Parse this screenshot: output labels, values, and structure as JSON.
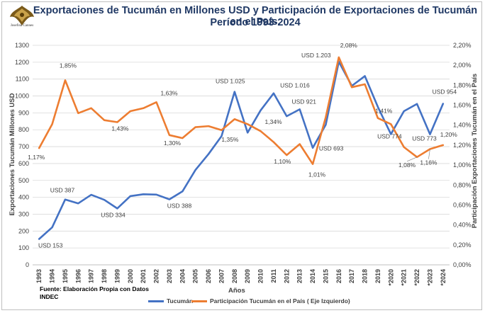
{
  "header": {
    "title_line1": "Exportaciones de Tucumán en Millones USD  y Participación de Exportaciones de Tucumán en el País.",
    "title_line2": "Período 1993-2024",
    "logo_text": "Josefina Cannes"
  },
  "source": {
    "line1": "Fuente: Elaboración Propia con Datos",
    "line2": "INDEC"
  },
  "colors": {
    "tucuman": "#4472c4",
    "participacion": "#ed7d31",
    "grid": "#d9d9d9",
    "title": "#1f3864"
  },
  "chart_data": {
    "type": "line",
    "xlabel": "Años",
    "ylabel_left": "Exportaciones Tucumán Millones USD",
    "ylabel_right": "Participación Exportaciones Tucumán en el País",
    "categories": [
      "1993",
      "1994",
      "1995",
      "1996",
      "1997",
      "1998",
      "1999",
      "2000",
      "2001",
      "2002",
      "2003",
      "2004",
      "2005",
      "2006",
      "2007",
      "2008",
      "2009",
      "2010",
      "2011",
      "2012",
      "2013",
      "2014",
      "2015",
      "2016",
      "2017",
      "2018",
      "2019",
      "*2020",
      "*2021",
      "*2022",
      "*2023",
      "*2024"
    ],
    "left_axis": {
      "min": 0,
      "max": 1300,
      "step": 100
    },
    "right_axis": {
      "min": 0,
      "max": 2.2,
      "step": 0.2,
      "tick_labels": [
        "0,00%",
        "0,20%",
        "0,40%",
        "0,60%",
        "0,80%",
        "1,00%",
        "1,20%",
        "1,40%",
        "1,60%",
        "1,80%",
        "2,00%",
        "2,20%"
      ]
    },
    "grid": true,
    "legend_position": "bottom",
    "series": [
      {
        "name": "Tucumán",
        "axis": "left",
        "values": [
          153,
          222,
          387,
          364,
          415,
          385,
          334,
          407,
          418,
          416,
          388,
          435,
          562,
          656,
          762,
          1025,
          783,
          915,
          1016,
          880,
          921,
          693,
          830,
          1203,
          1060,
          1118,
          935,
          774,
          910,
          953,
          773,
          954
        ]
      },
      {
        "name": "Participación Tucumán en el País ( Eje Izquierdo)",
        "axis": "right",
        "values": [
          1.17,
          1.41,
          1.85,
          1.52,
          1.57,
          1.45,
          1.43,
          1.54,
          1.57,
          1.63,
          1.3,
          1.27,
          1.38,
          1.39,
          1.35,
          1.46,
          1.41,
          1.34,
          1.23,
          1.1,
          1.21,
          1.01,
          1.48,
          2.08,
          1.78,
          1.81,
          1.47,
          1.41,
          1.18,
          1.08,
          1.16,
          1.2
        ]
      }
    ],
    "annotations": [
      {
        "series": 0,
        "index": 0,
        "text": "USD 153"
      },
      {
        "series": 0,
        "index": 2,
        "text": "USD 387"
      },
      {
        "series": 0,
        "index": 6,
        "text": "USD 334"
      },
      {
        "series": 0,
        "index": 10,
        "text": "USD 388"
      },
      {
        "series": 0,
        "index": 15,
        "text": "USD 1.025"
      },
      {
        "series": 0,
        "index": 18,
        "text": "USD 1.016"
      },
      {
        "series": 0,
        "index": 20,
        "text": "USD 921"
      },
      {
        "series": 0,
        "index": 21,
        "text": "USD 693"
      },
      {
        "series": 0,
        "index": 23,
        "text": "USD 1.203"
      },
      {
        "series": 0,
        "index": 27,
        "text": "USD 774"
      },
      {
        "series": 0,
        "index": 30,
        "text": "USD 773"
      },
      {
        "series": 0,
        "index": 31,
        "text": "USD 954"
      },
      {
        "series": 1,
        "index": 0,
        "text": "1,17%"
      },
      {
        "series": 1,
        "index": 2,
        "text": "1,85%"
      },
      {
        "series": 1,
        "index": 6,
        "text": "1,43%"
      },
      {
        "series": 1,
        "index": 9,
        "text": "1,63%"
      },
      {
        "series": 1,
        "index": 10,
        "text": "1,30%"
      },
      {
        "series": 1,
        "index": 14,
        "text": "1,35%"
      },
      {
        "series": 1,
        "index": 17,
        "text": "1,34%"
      },
      {
        "series": 1,
        "index": 19,
        "text": "1,10%"
      },
      {
        "series": 1,
        "index": 21,
        "text": "1,01%"
      },
      {
        "series": 1,
        "index": 23,
        "text": "2,08%"
      },
      {
        "series": 1,
        "index": 27,
        "text": "1,41%"
      },
      {
        "series": 1,
        "index": 29,
        "text": "1,08%"
      },
      {
        "series": 1,
        "index": 30,
        "text": "1,16%"
      },
      {
        "series": 1,
        "index": 31,
        "text": "1,20%"
      }
    ]
  }
}
